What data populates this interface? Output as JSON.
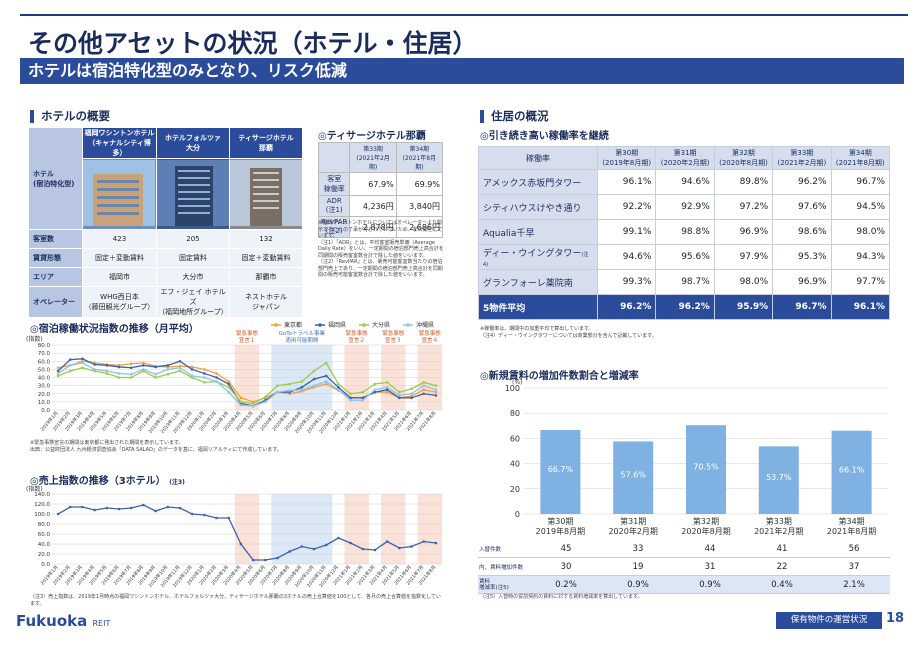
{
  "page_title": "その他アセットの状況（ホテル・住居）",
  "banner": "ホテルは宿泊特化型のみとなり、リスク低減",
  "hotel_overview": {
    "heading": "ホテルの概要",
    "row_header_top": "ホテル\n(宿泊特化型)",
    "columns": [
      "福岡ワシントンホテル\n（キャナルシティ博多）",
      "ホテルフォルツァ\n大分",
      "ティサージホテル\n那覇"
    ],
    "rows": [
      {
        "label": "客室数",
        "values": [
          "423",
          "205",
          "132"
        ]
      },
      {
        "label": "賃貸形態",
        "values": [
          "固定＋変動賃料",
          "固定賃料",
          "固定＋変動賃料"
        ]
      },
      {
        "label": "エリア",
        "values": [
          "福岡市",
          "大分市",
          "那覇市"
        ]
      },
      {
        "label": "オペレーター",
        "values": [
          "WHG西日本\n（藤田観光グループ）",
          "エフ・ジェイ ホテルズ\n（福岡地所グループ）",
          "ネストホテル\nジャパン"
        ]
      }
    ]
  },
  "tisage_table": {
    "heading": "◎ティサージホテル那覇",
    "columns": [
      "第33期\n(2021年2月期)",
      "第34期\n(2021年8月期)"
    ],
    "rows": [
      {
        "label": "客室\n稼働率",
        "values": [
          "67.9%",
          "69.9%"
        ]
      },
      {
        "label": "ADR\n(注1)",
        "values": [
          "4,236円",
          "3,840円"
        ]
      },
      {
        "label": "RevPAR\n(注2)",
        "values": [
          "2,878円",
          "2,686円"
        ]
      }
    ],
    "notes": [
      "※福岡ワシントンホテルについてはオペレーターより開示することの了承が得られていないため、非公開としています。",
      "（注1）「ADR」とは、平均客室販売単価（Average Daily Rate）をいい、一定期間の宿泊部門売上高合計を同期間の販売客室数合計で除した値をいいます。",
      "（注2）「RevPAR」とは、販売可能客室数当たりの宿泊部門売上であり、一定期間の宿泊部門売上高合計を同期間の販売可能客室数合計で除した値をいいます。"
    ]
  },
  "occupancy_chart": {
    "heading": "◎宿泊稼働状況指数の推移（月平均）",
    "unit": "(指数)",
    "legend": [
      "東京都",
      "福岡県",
      "大分県",
      "沖縄県"
    ],
    "colors": [
      "#f0a040",
      "#3a63b0",
      "#9ccc4a",
      "#8fc3e8"
    ],
    "bands": [
      {
        "label": "緊急事態\n宣言１",
        "type": "emergency"
      },
      {
        "label": "GoToトラベル事業\n適用可能期間",
        "type": "goto"
      },
      {
        "label": "緊急事態\n宣言２",
        "type": "emergency"
      },
      {
        "label": "緊急事態\n宣言３",
        "type": "emergency"
      },
      {
        "label": "緊急事態\n宣言４",
        "type": "emergency"
      }
    ],
    "notes": [
      "※緊急事態宣言の期間は東京都に発出された期間を表示しています。",
      "出典：公益財団法人 九州経済調査協会「DATA SALAD」のデータを基に、福岡リアルティにて作成しています。"
    ]
  },
  "sales_chart": {
    "heading": "◎売上指数の推移（3ホテル）",
    "heading_note": "(注3)",
    "unit": "(指数)",
    "note": "（注3）売上指数は、2019年1月時点の福岡ワシントンホテル、ホテルフォルツァ大分、ティサージホテル那覇の3ホテルの売上合算値を100として、各月の売上合算値を指数化しています。"
  },
  "residence": {
    "heading": "住居の概況",
    "subheading": "◎引き続き高い稼働率を継続",
    "header_label": "稼働率",
    "columns": [
      "第30期\n(2019年8月期)",
      "第31期\n(2020年2月期)",
      "第32期\n(2020年8月期)",
      "第33期\n(2021年2月期)",
      "第34期\n(2021年8月期)"
    ],
    "rows": [
      {
        "label": "アメックス赤坂門タワー",
        "values": [
          "96.1%",
          "94.6%",
          "89.8%",
          "96.2%",
          "96.7%"
        ]
      },
      {
        "label": "シティハウスけやき通り",
        "values": [
          "92.2%",
          "92.9%",
          "97.2%",
          "97.6%",
          "94.5%"
        ]
      },
      {
        "label": "Aqualia千早",
        "values": [
          "99.1%",
          "98.8%",
          "96.9%",
          "98.6%",
          "98.0%"
        ]
      },
      {
        "label": "ディー・ウイングタワー",
        "note": "(注4)",
        "values": [
          "94.6%",
          "95.6%",
          "97.9%",
          "95.3%",
          "94.3%"
        ]
      },
      {
        "label": "グランフォーレ薬院南",
        "values": [
          "99.3%",
          "98.7%",
          "98.0%",
          "96.9%",
          "97.7%"
        ]
      }
    ],
    "average": {
      "label": "5物件平均",
      "values": [
        "96.2%",
        "96.2%",
        "95.9%",
        "96.7%",
        "96.1%"
      ]
    },
    "notes": [
      "※稼働率は、期間中の加重平均で算出しています。",
      "（注4）ディー・ウイングタワーについては商業部分を含んで記載しています。"
    ]
  },
  "rent_chart": {
    "heading": "◎新規賃料の増加件数割合と増減率",
    "table_rows": [
      {
        "label": "入替件数",
        "values": [
          "45",
          "33",
          "44",
          "41",
          "56"
        ]
      },
      {
        "label": "内、賃料増加件数",
        "values": [
          "30",
          "19",
          "31",
          "22",
          "37"
        ]
      },
      {
        "label": "賃料\n増減率(注5)",
        "values": [
          "0.2%",
          "0.9%",
          "0.9%",
          "0.4%",
          "2.1%"
        ]
      }
    ],
    "note": "（注5）入替時の従前契約の賃料に対する賃料増減率を算出しています。"
  },
  "footer": {
    "logo": "Fukuoka",
    "logo_sub": "REIT",
    "tag": "保有物件の運営状況",
    "page": "18"
  },
  "chart_data": [
    {
      "type": "line",
      "title": "宿泊稼働状況指数の推移（月平均）",
      "ylabel": "(指数)",
      "ylim": [
        0,
        80
      ],
      "yticks": [
        "0.0",
        "10.0",
        "20.0",
        "30.0",
        "40.0",
        "50.0",
        "60.0",
        "70.0",
        "80.0"
      ],
      "x": [
        "2019年1月",
        "2019年2月",
        "2019年3月",
        "2019年4月",
        "2019年5月",
        "2019年6月",
        "2019年7月",
        "2019年8月",
        "2019年9月",
        "2019年10月",
        "2019年11月",
        "2019年12月",
        "2020年1月",
        "2020年2月",
        "2020年3月",
        "2020年4月",
        "2020年5月",
        "2020年6月",
        "2020年7月",
        "2020年8月",
        "2020年9月",
        "2020年10月",
        "2020年11月",
        "2020年12月",
        "2021年1月",
        "2021年2月",
        "2021年3月",
        "2021年4月",
        "2021年5月",
        "2021年6月",
        "2021年7月",
        "2021年8月"
      ],
      "grid": true,
      "legend_position": "top-right",
      "series": [
        {
          "name": "東京都",
          "values": [
            52,
            55,
            60,
            58,
            56,
            55,
            57,
            58,
            54,
            53,
            54,
            53,
            50,
            45,
            35,
            15,
            10,
            15,
            22,
            20,
            23,
            28,
            32,
            24,
            15,
            15,
            22,
            22,
            15,
            17,
            25,
            22
          ]
        },
        {
          "name": "福岡県",
          "values": [
            48,
            62,
            63,
            56,
            55,
            53,
            52,
            55,
            53,
            55,
            60,
            50,
            45,
            40,
            32,
            8,
            5,
            12,
            22,
            22,
            28,
            38,
            42,
            28,
            15,
            15,
            22,
            25,
            15,
            15,
            20,
            18
          ]
        },
        {
          "name": "大分県",
          "values": [
            42,
            48,
            52,
            48,
            45,
            40,
            40,
            48,
            40,
            44,
            48,
            40,
            34,
            35,
            28,
            10,
            8,
            16,
            30,
            32,
            35,
            48,
            58,
            32,
            20,
            22,
            32,
            34,
            22,
            26,
            34,
            30
          ]
        },
        {
          "name": "沖縄県",
          "values": [
            45,
            55,
            58,
            50,
            48,
            45,
            44,
            50,
            44,
            50,
            52,
            42,
            40,
            35,
            22,
            6,
            5,
            10,
            22,
            24,
            25,
            30,
            35,
            25,
            12,
            12,
            25,
            28,
            18,
            20,
            30,
            25
          ]
        }
      ]
    },
    {
      "type": "line",
      "title": "売上指数の推移（3ホテル）",
      "ylabel": "(指数)",
      "ylim": [
        0,
        140
      ],
      "yticks": [
        "0.0",
        "20.0",
        "40.0",
        "60.0",
        "80.0",
        "100.0",
        "120.0",
        "140.0"
      ],
      "x": [
        "2019年1月",
        "2019年2月",
        "2019年3月",
        "2019年4月",
        "2019年5月",
        "2019年6月",
        "2019年7月",
        "2019年8月",
        "2019年9月",
        "2019年10月",
        "2019年11月",
        "2019年12月",
        "2020年1月",
        "2020年2月",
        "2020年3月",
        "2020年4月",
        "2020年5月",
        "2020年6月",
        "2020年7月",
        "2020年8月",
        "2020年9月",
        "2020年10月",
        "2020年11月",
        "2020年12月",
        "2021年1月",
        "2021年2月",
        "2021年3月",
        "2021年4月",
        "2021年5月",
        "2021年6月",
        "2021年7月",
        "2021年8月"
      ],
      "grid": true,
      "series": [
        {
          "name": "",
          "values": [
            100,
            114,
            114,
            108,
            112,
            110,
            112,
            118,
            106,
            114,
            112,
            100,
            98,
            92,
            92,
            40,
            8,
            8,
            12,
            25,
            35,
            30,
            38,
            52,
            42,
            30,
            28,
            45,
            32,
            35,
            45,
            42
          ]
        }
      ]
    },
    {
      "type": "bar",
      "title": "新規賃料の増加件数割合と増減率",
      "ylabel": "(%)",
      "ylim": [
        0,
        100
      ],
      "yticks": [
        "0",
        "20",
        "40",
        "60",
        "80",
        "100"
      ],
      "categories": [
        "第30期\n2019年8月期",
        "第31期\n2020年2月期",
        "第32期\n2020年8月期",
        "第33期\n2021年2月期",
        "第34期\n2021年8月期"
      ],
      "values": [
        66.7,
        57.6,
        70.5,
        53.7,
        66.1
      ],
      "labels": [
        "66.7%",
        "57.6%",
        "70.5%",
        "53.7%",
        "66.1%"
      ],
      "grid": true
    }
  ]
}
